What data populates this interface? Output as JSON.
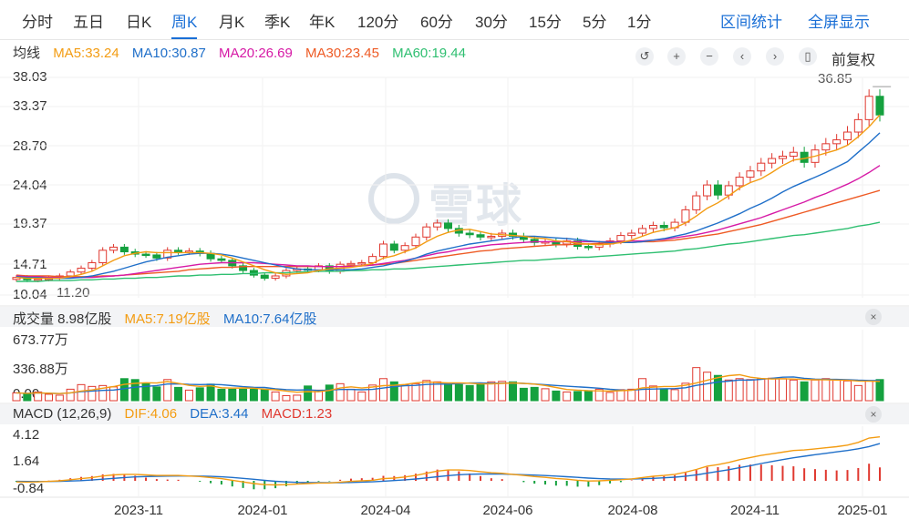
{
  "tabs": [
    {
      "label": "分时"
    },
    {
      "label": "五日"
    },
    {
      "label": "日K"
    },
    {
      "label": "周K",
      "active": true
    },
    {
      "label": "月K"
    },
    {
      "label": "季K"
    },
    {
      "label": "年K"
    },
    {
      "label": "120分"
    },
    {
      "label": "60分"
    },
    {
      "label": "30分"
    },
    {
      "label": "15分"
    },
    {
      "label": "5分"
    },
    {
      "label": "1分"
    }
  ],
  "actions": {
    "range_stats": "区间统计",
    "fullscreen": "全屏显示"
  },
  "price_legend": {
    "title": "均线",
    "ma5": "MA5:33.24",
    "ma10": "MA10:30.87",
    "ma20": "MA20:26.69",
    "ma30": "MA30:23.45",
    "ma60": "MA60:19.44"
  },
  "controls": {
    "adjust_label": "前复权"
  },
  "price_axis": {
    "ticks": [
      "38.03",
      "33.37",
      "28.70",
      "24.04",
      "19.37",
      "14.71",
      "10.04"
    ],
    "low_label": "11.20",
    "high_label": "36.85"
  },
  "volume_legend": {
    "title": "成交量 8.98亿股",
    "ma5": "MA5:7.19亿股",
    "ma10": "MA10:7.64亿股"
  },
  "volume_axis": {
    "ticks": [
      "673.77万",
      "336.88万",
      "0.00"
    ]
  },
  "macd_legend": {
    "title": "MACD (12,26,9)",
    "dif": "DIF:4.06",
    "dea": "DEA:3.44",
    "macd": "MACD:1.23"
  },
  "macd_axis": {
    "ticks": [
      "4.12",
      "1.64",
      "-0.84"
    ]
  },
  "x_axis": {
    "labels": [
      "2023-11",
      "2024-01",
      "2024-04",
      "2024-06",
      "2024-08",
      "2024-11",
      "2025-01"
    ]
  },
  "watermark": "雪球",
  "colors": {
    "up": "#e0382f",
    "down": "#15a13f",
    "ma5": "#f39c12",
    "ma10": "#1f6fc9",
    "ma20": "#d61aa6",
    "ma30": "#ee5a24",
    "ma60": "#2fbf71",
    "accent": "#1a6fd6"
  },
  "chart_data": {
    "type": "candlestick",
    "price_ylim": [
      10.04,
      38.03
    ],
    "close": [
      12.3,
      12.0,
      12.1,
      12.2,
      12.5,
      13.0,
      13.5,
      14.2,
      15.8,
      16.2,
      15.6,
      15.3,
      15.2,
      14.8,
      15.8,
      15.6,
      15.7,
      15.4,
      14.7,
      14.5,
      13.8,
      13.2,
      12.6,
      12.2,
      12.5,
      13.2,
      13.4,
      13.3,
      13.8,
      13.1,
      14.0,
      14.1,
      14.2,
      15.0,
      16.6,
      15.8,
      16.4,
      17.5,
      18.8,
      19.3,
      18.6,
      18.0,
      17.8,
      17.5,
      17.6,
      18.0,
      17.6,
      17.2,
      16.8,
      16.9,
      16.6,
      17.0,
      16.3,
      16.2,
      16.6,
      17.0,
      17.7,
      18.0,
      18.6,
      19.0,
      18.7,
      19.4,
      21.0,
      22.8,
      24.2,
      22.9,
      24.1,
      25.2,
      26.0,
      27.0,
      27.6,
      27.9,
      28.4,
      27.1,
      28.7,
      29.5,
      30.0,
      31.0,
      32.6,
      35.6,
      33.2
    ],
    "ma5": [
      12.3,
      12.2,
      12.2,
      12.2,
      12.2,
      12.4,
      12.7,
      13.1,
      13.8,
      14.5,
      15.1,
      15.4,
      15.6,
      15.5,
      15.5,
      15.5,
      15.5,
      15.5,
      15.4,
      15.2,
      14.8,
      14.3,
      13.8,
      13.3,
      12.9,
      12.7,
      12.8,
      12.9,
      13.2,
      13.4,
      13.5,
      13.6,
      13.8,
      14.1,
      14.8,
      15.1,
      15.6,
      16.1,
      16.9,
      17.6,
      18.1,
      18.4,
      18.5,
      18.2,
      17.9,
      17.8,
      17.7,
      17.6,
      17.4,
      17.3,
      17.0,
      16.9,
      16.7,
      16.6,
      16.5,
      16.6,
      16.8,
      17.1,
      17.6,
      18.1,
      18.4,
      18.7,
      19.3,
      20.2,
      21.2,
      21.9,
      22.8,
      23.8,
      24.5,
      25.0,
      25.8,
      26.7,
      27.4,
      27.6,
      27.9,
      28.3,
      28.7,
      29.3,
      30.4,
      31.7,
      33.2
    ],
    "ma10": [
      12.4,
      12.3,
      12.3,
      12.2,
      12.2,
      12.2,
      12.3,
      12.5,
      12.8,
      13.1,
      13.5,
      13.9,
      14.3,
      14.6,
      14.9,
      15.1,
      15.3,
      15.4,
      15.4,
      15.3,
      15.1,
      14.8,
      14.5,
      14.2,
      13.9,
      13.6,
      13.4,
      13.3,
      13.3,
      13.3,
      13.3,
      13.3,
      13.4,
      13.6,
      13.8,
      14.1,
      14.4,
      14.8,
      15.3,
      15.7,
      16.0,
      16.3,
      16.6,
      16.8,
      17.0,
      17.2,
      17.4,
      17.6,
      17.6,
      17.5,
      17.4,
      17.3,
      17.2,
      17.0,
      16.9,
      16.8,
      16.8,
      16.8,
      16.9,
      17.1,
      17.3,
      17.6,
      17.9,
      18.3,
      18.8,
      19.3,
      19.9,
      20.5,
      21.2,
      21.8,
      22.5,
      23.3,
      24.0,
      24.6,
      25.2,
      25.8,
      26.5,
      27.2,
      28.4,
      29.6,
      30.9
    ],
    "ma20": [
      12.5,
      12.4,
      12.4,
      12.3,
      12.3,
      12.3,
      12.3,
      12.3,
      12.4,
      12.5,
      12.6,
      12.8,
      13.0,
      13.2,
      13.4,
      13.6,
      13.8,
      14.0,
      14.1,
      14.2,
      14.2,
      14.2,
      14.2,
      14.1,
      14.0,
      13.9,
      13.8,
      13.8,
      13.7,
      13.7,
      13.7,
      13.7,
      13.8,
      13.9,
      14.1,
      14.3,
      14.5,
      14.8,
      15.1,
      15.4,
      15.6,
      15.9,
      16.1,
      16.3,
      16.5,
      16.6,
      16.7,
      16.8,
      16.9,
      16.9,
      16.9,
      16.9,
      16.9,
      16.9,
      16.9,
      16.9,
      16.9,
      17.0,
      17.0,
      17.1,
      17.2,
      17.4,
      17.6,
      17.8,
      18.1,
      18.4,
      18.8,
      19.2,
      19.6,
      20.0,
      20.5,
      21.0,
      21.5,
      22.0,
      22.6,
      23.1,
      23.7,
      24.3,
      25.0,
      25.8,
      26.7
    ],
    "ma30": [
      12.6,
      12.5,
      12.5,
      12.5,
      12.4,
      12.4,
      12.4,
      12.4,
      12.5,
      12.5,
      12.6,
      12.7,
      12.8,
      12.9,
      13.0,
      13.1,
      13.3,
      13.4,
      13.5,
      13.6,
      13.6,
      13.7,
      13.7,
      13.7,
      13.7,
      13.7,
      13.7,
      13.7,
      13.7,
      13.7,
      13.7,
      13.8,
      13.8,
      13.9,
      14.0,
      14.1,
      14.3,
      14.5,
      14.7,
      14.9,
      15.1,
      15.3,
      15.5,
      15.7,
      15.8,
      16.0,
      16.1,
      16.2,
      16.3,
      16.4,
      16.5,
      16.5,
      16.6,
      16.6,
      16.7,
      16.7,
      16.8,
      16.8,
      16.9,
      16.9,
      17.0,
      17.1,
      17.3,
      17.5,
      17.7,
      17.9,
      18.2,
      18.5,
      18.8,
      19.1,
      19.5,
      19.9,
      20.3,
      20.7,
      21.1,
      21.5,
      21.9,
      22.3,
      22.7,
      23.1,
      23.5
    ],
    "ma60": [
      11.8,
      11.8,
      11.8,
      11.9,
      11.9,
      11.9,
      12.0,
      12.0,
      12.1,
      12.1,
      12.2,
      12.2,
      12.3,
      12.3,
      12.4,
      12.5,
      12.5,
      12.6,
      12.6,
      12.7,
      12.7,
      12.8,
      12.8,
      12.9,
      12.9,
      12.9,
      13.0,
      13.0,
      13.1,
      13.1,
      13.1,
      13.2,
      13.2,
      13.3,
      13.3,
      13.4,
      13.4,
      13.5,
      13.6,
      13.7,
      13.8,
      13.9,
      14.0,
      14.1,
      14.2,
      14.3,
      14.4,
      14.5,
      14.5,
      14.6,
      14.7,
      14.8,
      14.9,
      14.9,
      15.0,
      15.1,
      15.2,
      15.3,
      15.4,
      15.5,
      15.6,
      15.7,
      15.9,
      16.0,
      16.2,
      16.4,
      16.6,
      16.7,
      16.9,
      17.1,
      17.3,
      17.5,
      17.7,
      17.8,
      18.0,
      18.2,
      18.4,
      18.6,
      18.9,
      19.1,
      19.4
    ],
    "volume_ylim": [
      0,
      673.77
    ],
    "volume": [
      85,
      75,
      95,
      70,
      60,
      125,
      175,
      155,
      165,
      150,
      240,
      230,
      190,
      150,
      230,
      145,
      115,
      140,
      180,
      125,
      125,
      125,
      125,
      125,
      95,
      55,
      60,
      160,
      115,
      170,
      185,
      125,
      95,
      170,
      240,
      205,
      170,
      185,
      220,
      205,
      185,
      175,
      165,
      180,
      205,
      210,
      205,
      135,
      145,
      130,
      105,
      95,
      100,
      110,
      125,
      90,
      120,
      125,
      240,
      160,
      130,
      120,
      190,
      360,
      310,
      275,
      225,
      240,
      230,
      240,
      245,
      240,
      225,
      205,
      225,
      240,
      225,
      215,
      165,
      215,
      230
    ],
    "macd_ylim": [
      -0.84,
      4.12
    ],
    "dif": [
      -0.1,
      -0.12,
      -0.1,
      -0.05,
      0.0,
      0.1,
      0.2,
      0.3,
      0.45,
      0.55,
      0.6,
      0.6,
      0.55,
      0.5,
      0.5,
      0.5,
      0.45,
      0.4,
      0.3,
      0.2,
      0.05,
      -0.1,
      -0.25,
      -0.35,
      -0.38,
      -0.35,
      -0.3,
      -0.25,
      -0.2,
      -0.2,
      -0.12,
      -0.05,
      0.0,
      0.05,
      0.2,
      0.25,
      0.35,
      0.5,
      0.7,
      0.9,
      1.0,
      1.0,
      0.95,
      0.85,
      0.75,
      0.7,
      0.6,
      0.5,
      0.4,
      0.32,
      0.22,
      0.15,
      0.05,
      -0.02,
      0.0,
      0.05,
      0.1,
      0.18,
      0.3,
      0.42,
      0.5,
      0.6,
      0.8,
      1.05,
      1.35,
      1.5,
      1.7,
      1.95,
      2.15,
      2.35,
      2.5,
      2.65,
      2.8,
      2.85,
      2.95,
      3.05,
      3.15,
      3.3,
      3.55,
      3.95,
      4.06
    ],
    "dea": [
      -0.05,
      -0.06,
      -0.07,
      -0.06,
      -0.05,
      -0.02,
      0.02,
      0.08,
      0.15,
      0.23,
      0.3,
      0.36,
      0.4,
      0.42,
      0.44,
      0.45,
      0.45,
      0.44,
      0.41,
      0.37,
      0.31,
      0.23,
      0.14,
      0.04,
      -0.04,
      -0.1,
      -0.14,
      -0.16,
      -0.17,
      -0.18,
      -0.17,
      -0.15,
      -0.12,
      -0.09,
      -0.03,
      0.03,
      0.09,
      0.17,
      0.27,
      0.38,
      0.48,
      0.56,
      0.61,
      0.63,
      0.63,
      0.62,
      0.6,
      0.56,
      0.53,
      0.49,
      0.44,
      0.38,
      0.32,
      0.25,
      0.2,
      0.17,
      0.16,
      0.16,
      0.19,
      0.23,
      0.28,
      0.34,
      0.43,
      0.55,
      0.71,
      0.87,
      1.03,
      1.21,
      1.4,
      1.6,
      1.78,
      1.96,
      2.13,
      2.27,
      2.41,
      2.54,
      2.67,
      2.8,
      2.96,
      3.16,
      3.44
    ]
  }
}
